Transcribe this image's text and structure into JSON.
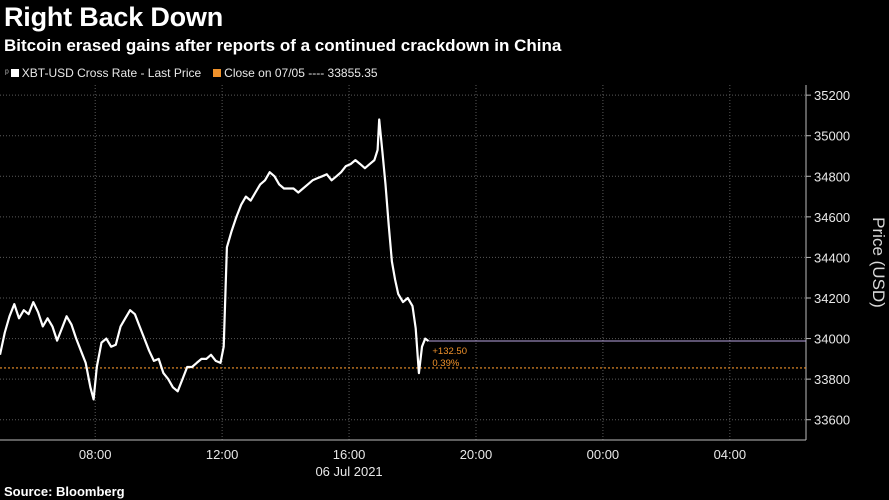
{
  "header": {
    "title": "Right Back Down",
    "subtitle": "Bitcoin erased gains after reports of a continued crackdown in China"
  },
  "legend": {
    "series_label": "XBT-USD Cross Rate - Last Price",
    "close_label": "Close on 07/05 ---- 33855.35",
    "series_color": "#ffffff",
    "close_color": "#f0922b"
  },
  "footer": {
    "source": "Source: Bloomberg"
  },
  "chart_data": {
    "type": "line",
    "title": "Right Back Down",
    "subtitle": "Bitcoin erased gains after reports of a continued crackdown in China",
    "xlabel": "06 Jul 2021",
    "ylabel": "Price (USD)",
    "x_range_hours": [
      5.0,
      30.4
    ],
    "x_ticks": [
      {
        "hour": 8,
        "label": "08:00"
      },
      {
        "hour": 12,
        "label": "12:00"
      },
      {
        "hour": 16,
        "label": "16:00"
      },
      {
        "hour": 20,
        "label": "20:00"
      },
      {
        "hour": 24,
        "label": "00:00"
      },
      {
        "hour": 28,
        "label": "04:00"
      }
    ],
    "ylim": [
      33500,
      35250
    ],
    "y_ticks": [
      33600,
      33800,
      34000,
      34200,
      34400,
      34600,
      34800,
      35000,
      35200
    ],
    "y_axis_side": "right",
    "grid": true,
    "legend_position": "top-left",
    "reference_line": {
      "name": "Close on 07/05",
      "value": 33855.35,
      "color": "#f0922b"
    },
    "last_value_line": {
      "value": 33988,
      "color": "#b8a5e0"
    },
    "annotations": [
      {
        "text": "+132.50",
        "color": "#f0922b"
      },
      {
        "text": "0.39%",
        "color": "#f0922b"
      }
    ],
    "series": [
      {
        "name": "XBT-USD Cross Rate - Last Price",
        "color": "#ffffff",
        "points": [
          [
            5.0,
            33920
          ],
          [
            5.15,
            34030
          ],
          [
            5.3,
            34110
          ],
          [
            5.45,
            34170
          ],
          [
            5.6,
            34100
          ],
          [
            5.75,
            34140
          ],
          [
            5.9,
            34120
          ],
          [
            6.05,
            34180
          ],
          [
            6.2,
            34130
          ],
          [
            6.35,
            34060
          ],
          [
            6.5,
            34100
          ],
          [
            6.65,
            34060
          ],
          [
            6.8,
            33990
          ],
          [
            6.95,
            34050
          ],
          [
            7.1,
            34110
          ],
          [
            7.25,
            34070
          ],
          [
            7.4,
            34000
          ],
          [
            7.55,
            33940
          ],
          [
            7.7,
            33880
          ],
          [
            7.85,
            33760
          ],
          [
            7.95,
            33700
          ],
          [
            8.05,
            33860
          ],
          [
            8.2,
            33980
          ],
          [
            8.35,
            34000
          ],
          [
            8.5,
            33960
          ],
          [
            8.65,
            33970
          ],
          [
            8.8,
            34060
          ],
          [
            8.95,
            34100
          ],
          [
            9.1,
            34140
          ],
          [
            9.25,
            34120
          ],
          [
            9.4,
            34060
          ],
          [
            9.55,
            34000
          ],
          [
            9.7,
            33940
          ],
          [
            9.85,
            33890
          ],
          [
            10.0,
            33900
          ],
          [
            10.15,
            33830
          ],
          [
            10.3,
            33800
          ],
          [
            10.45,
            33760
          ],
          [
            10.6,
            33740
          ],
          [
            10.75,
            33800
          ],
          [
            10.9,
            33860
          ],
          [
            11.05,
            33860
          ],
          [
            11.2,
            33880
          ],
          [
            11.35,
            33900
          ],
          [
            11.5,
            33900
          ],
          [
            11.65,
            33920
          ],
          [
            11.8,
            33890
          ],
          [
            11.95,
            33880
          ],
          [
            12.05,
            33960
          ],
          [
            12.15,
            34450
          ],
          [
            12.3,
            34530
          ],
          [
            12.45,
            34600
          ],
          [
            12.6,
            34660
          ],
          [
            12.75,
            34700
          ],
          [
            12.9,
            34680
          ],
          [
            13.05,
            34720
          ],
          [
            13.2,
            34760
          ],
          [
            13.35,
            34780
          ],
          [
            13.5,
            34820
          ],
          [
            13.65,
            34800
          ],
          [
            13.8,
            34760
          ],
          [
            13.95,
            34740
          ],
          [
            14.1,
            34740
          ],
          [
            14.25,
            34740
          ],
          [
            14.4,
            34720
          ],
          [
            14.55,
            34740
          ],
          [
            14.7,
            34760
          ],
          [
            14.85,
            34780
          ],
          [
            15.0,
            34790
          ],
          [
            15.15,
            34800
          ],
          [
            15.3,
            34810
          ],
          [
            15.45,
            34780
          ],
          [
            15.6,
            34800
          ],
          [
            15.75,
            34820
          ],
          [
            15.9,
            34850
          ],
          [
            16.05,
            34860
          ],
          [
            16.2,
            34880
          ],
          [
            16.35,
            34860
          ],
          [
            16.5,
            34840
          ],
          [
            16.65,
            34860
          ],
          [
            16.8,
            34880
          ],
          [
            16.9,
            34930
          ],
          [
            16.95,
            35080
          ],
          [
            17.05,
            34920
          ],
          [
            17.15,
            34760
          ],
          [
            17.25,
            34560
          ],
          [
            17.35,
            34380
          ],
          [
            17.45,
            34290
          ],
          [
            17.55,
            34220
          ],
          [
            17.7,
            34180
          ],
          [
            17.85,
            34200
          ],
          [
            18.0,
            34160
          ],
          [
            18.1,
            34050
          ],
          [
            18.2,
            33830
          ],
          [
            18.3,
            33960
          ],
          [
            18.4,
            34000
          ],
          [
            18.5,
            33988
          ]
        ]
      }
    ]
  }
}
